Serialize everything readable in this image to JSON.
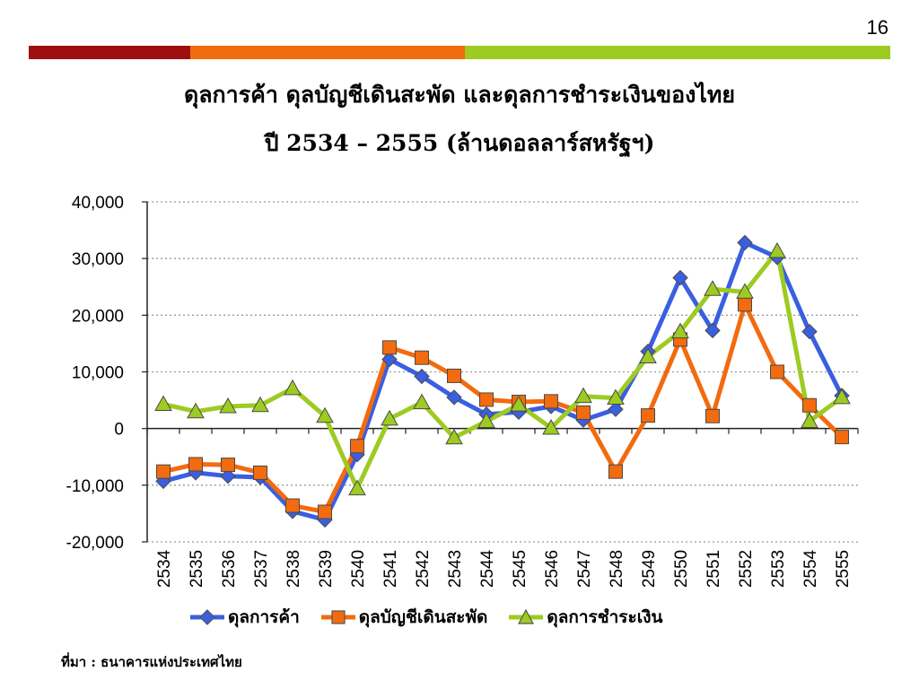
{
  "page": {
    "number": "16",
    "color_bar": [
      "#a00f10",
      "#f26b0e",
      "#9dcb22"
    ],
    "source": "ที่มา : ธนาคารแห่งประเทศไทย"
  },
  "chart_data": {
    "type": "line",
    "title": "ดุลการค้า ดุลบัญชีเดินสะพัด และดุลการชำระเงินของไทย",
    "subtitle": "ปี 2534 – 2555 (ล้านดอลลาร์สหรัฐฯ)",
    "xlabel": "",
    "ylabel": "",
    "ylim": [
      -20000,
      40000
    ],
    "yticks": [
      -20000,
      -10000,
      0,
      10000,
      20000,
      30000,
      40000
    ],
    "ytick_labels": [
      "-20,000",
      "-10,000",
      "0",
      "10,000",
      "20,000",
      "30,000",
      "40,000"
    ],
    "grid": true,
    "legend_position": "bottom",
    "categories": [
      "2534",
      "2535",
      "2536",
      "2537",
      "2538",
      "2539",
      "2540",
      "2541",
      "2542",
      "2543",
      "2544",
      "2545",
      "2546",
      "2547",
      "2548",
      "2549",
      "2550",
      "2551",
      "2552",
      "2553",
      "2554",
      "2555"
    ],
    "series": [
      {
        "name": "ดุลการค้า",
        "color": "#3a5fe0",
        "marker": "diamond",
        "values": [
          -9300,
          -7800,
          -8400,
          -8600,
          -14600,
          -16100,
          -4600,
          12200,
          9200,
          5500,
          2500,
          2900,
          3900,
          1500,
          3400,
          13600,
          26600,
          17300,
          32800,
          30200,
          17100,
          5800
        ]
      },
      {
        "name": "ดุลบัญชีเดินสะพัด",
        "color": "#f26b0e",
        "marker": "square",
        "values": [
          -7600,
          -6300,
          -6400,
          -7800,
          -13600,
          -14700,
          -3100,
          14300,
          12500,
          9300,
          5100,
          4700,
          4800,
          2800,
          -7600,
          2300,
          15700,
          2200,
          21900,
          10000,
          4100,
          -1500
        ]
      },
      {
        "name": "ดุลการชำระเงิน",
        "color": "#9dcb22",
        "marker": "triangle",
        "values": [
          4300,
          3000,
          3900,
          4100,
          7100,
          2200,
          -10600,
          1700,
          4600,
          -1600,
          1300,
          4200,
          100,
          5700,
          5400,
          12700,
          17100,
          24600,
          24100,
          31300,
          1300,
          5500
        ]
      }
    ]
  }
}
